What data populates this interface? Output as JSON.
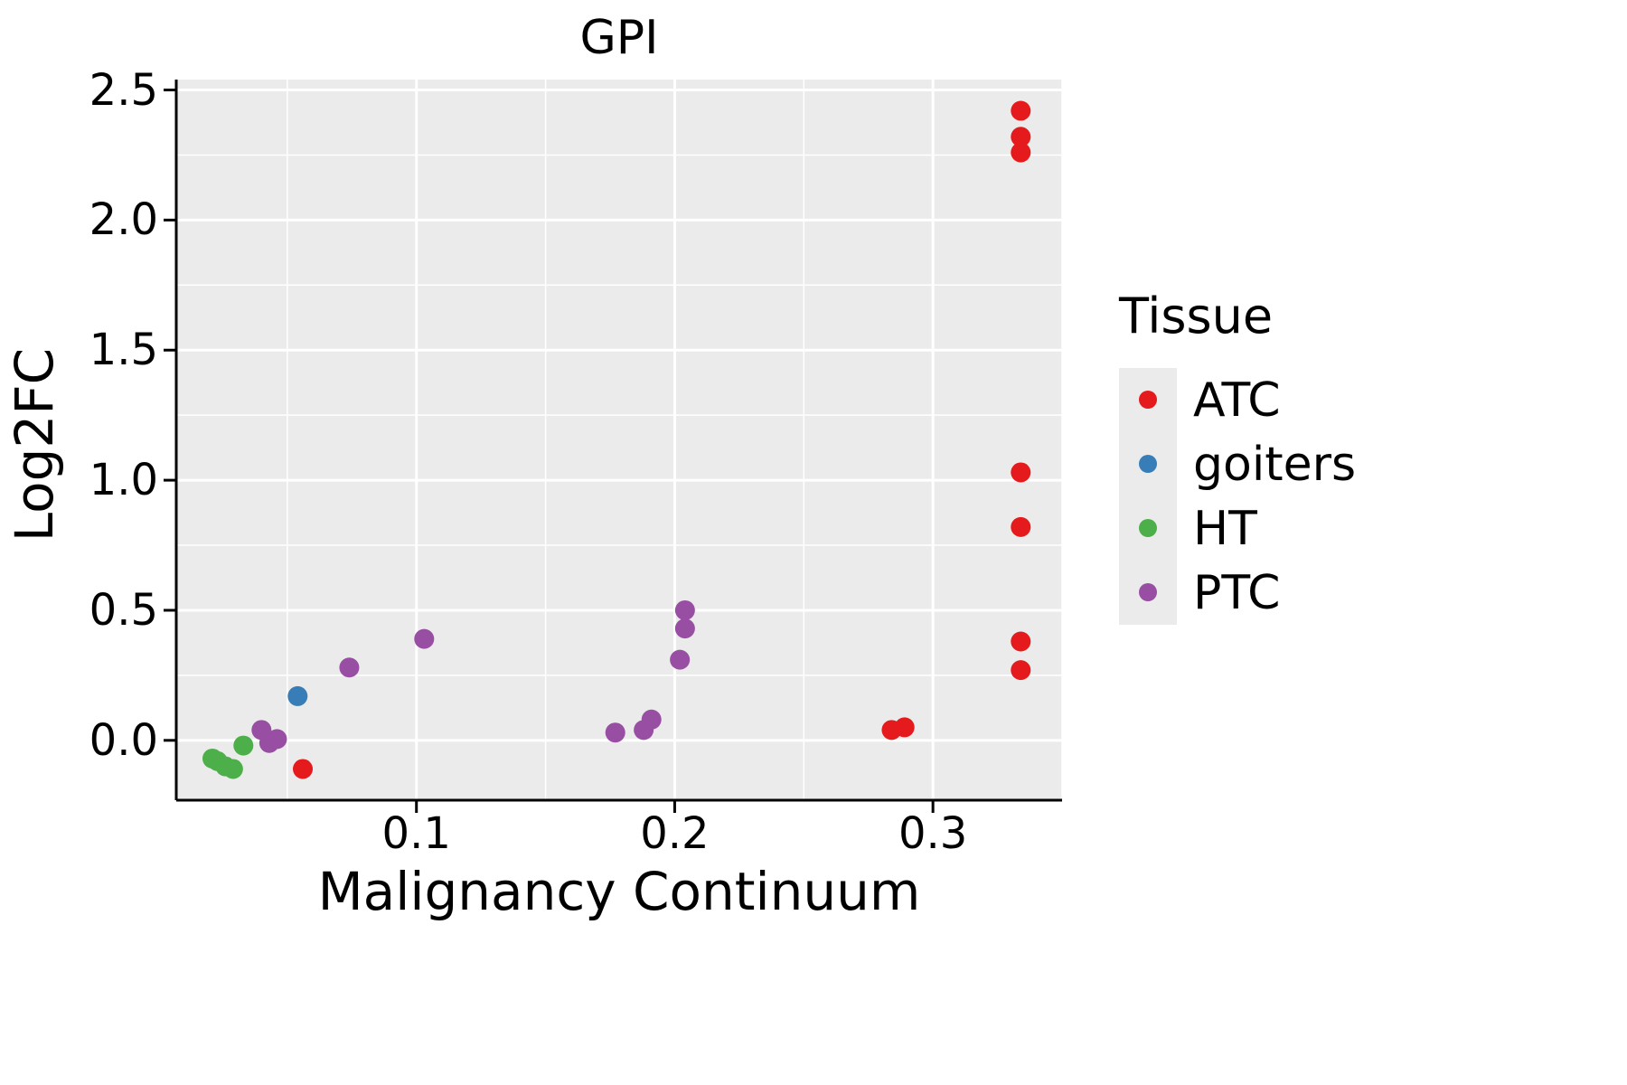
{
  "chart_data": {
    "type": "scatter",
    "title": "GPI",
    "xlabel": "Malignancy Continuum",
    "ylabel": "Log2FC",
    "legend_title": "Tissue",
    "legend_position": "right",
    "grid": true,
    "xlim": [
      0.007,
      0.35
    ],
    "ylim": [
      -0.23,
      2.54
    ],
    "xticks": {
      "values": [
        0.1,
        0.2,
        0.3
      ],
      "labels": [
        "0.1",
        "0.2",
        "0.3"
      ]
    },
    "yticks": {
      "values": [
        0.0,
        0.5,
        1.0,
        1.5,
        2.0,
        2.5
      ],
      "labels": [
        "0.0",
        "0.5",
        "1.0",
        "1.5",
        "2.0",
        "2.5"
      ]
    },
    "x_minor": [
      0.05,
      0.15,
      0.25,
      0.35
    ],
    "y_minor": [
      0.25,
      0.75,
      1.25,
      1.75,
      2.25
    ],
    "colors": {
      "panel": "#EBEBEB",
      "grid_major": "#FFFFFF",
      "grid_minor": "#FFFFFF",
      "axis": "#000000",
      "text": "#000000"
    },
    "point_radius": 11,
    "series": [
      {
        "name": "ATC",
        "color": "#E41A1C",
        "points": [
          [
            0.056,
            -0.11
          ],
          [
            0.284,
            0.04
          ],
          [
            0.289,
            0.05
          ],
          [
            0.334,
            0.27
          ],
          [
            0.334,
            0.38
          ],
          [
            0.334,
            0.82
          ],
          [
            0.334,
            1.03
          ],
          [
            0.334,
            2.26
          ],
          [
            0.334,
            2.32
          ],
          [
            0.334,
            2.42
          ]
        ]
      },
      {
        "name": "goiters",
        "color": "#377EB8",
        "points": [
          [
            0.054,
            0.17
          ]
        ]
      },
      {
        "name": "HT",
        "color": "#4DAF4A",
        "points": [
          [
            0.021,
            -0.07
          ],
          [
            0.023,
            -0.08
          ],
          [
            0.026,
            -0.1
          ],
          [
            0.029,
            -0.11
          ],
          [
            0.033,
            -0.02
          ]
        ]
      },
      {
        "name": "PTC",
        "color": "#984EA3",
        "points": [
          [
            0.04,
            0.04
          ],
          [
            0.043,
            -0.01
          ],
          [
            0.046,
            0.005
          ],
          [
            0.074,
            0.28
          ],
          [
            0.103,
            0.39
          ],
          [
            0.177,
            0.03
          ],
          [
            0.188,
            0.04
          ],
          [
            0.191,
            0.08
          ],
          [
            0.202,
            0.31
          ],
          [
            0.204,
            0.43
          ],
          [
            0.204,
            0.5
          ]
        ]
      }
    ]
  }
}
